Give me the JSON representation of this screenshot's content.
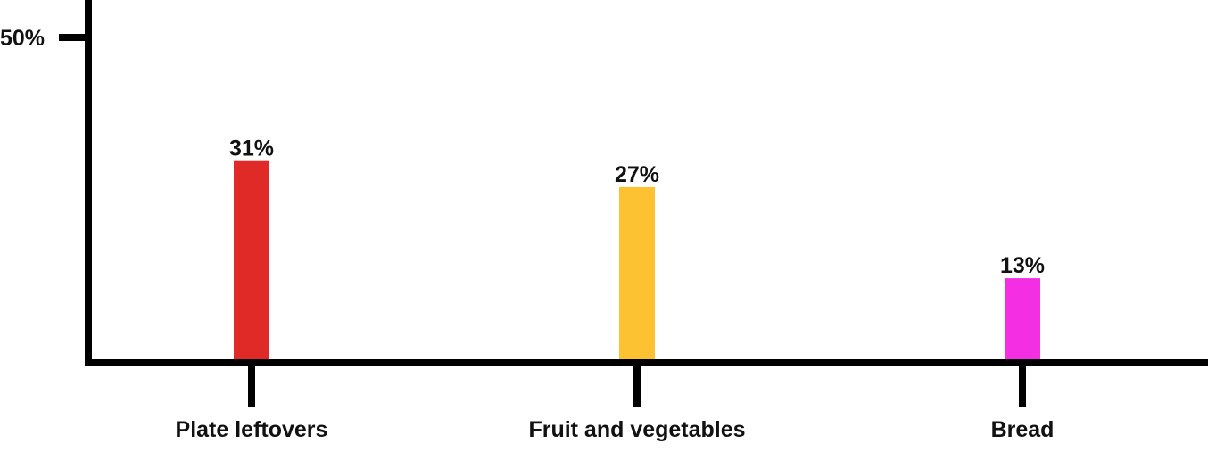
{
  "chart_data": {
    "type": "bar",
    "title": "",
    "xlabel": "",
    "ylabel": "",
    "categories": [
      "Plate leftovers",
      "Fruit and vegetables",
      "Bread"
    ],
    "values": [
      31,
      27,
      13
    ],
    "value_labels": [
      "31%",
      "27%",
      "13%"
    ],
    "colors": [
      "#e02a27",
      "#fcc232",
      "#f42ee2"
    ],
    "ylim": [
      0,
      50
    ],
    "yticks": [
      {
        "value": 50,
        "label": "50%"
      }
    ],
    "grid": false,
    "legend": "none"
  },
  "style": {
    "axis_color": "#000000",
    "text_color": "#111111",
    "background": "#ffffff"
  }
}
